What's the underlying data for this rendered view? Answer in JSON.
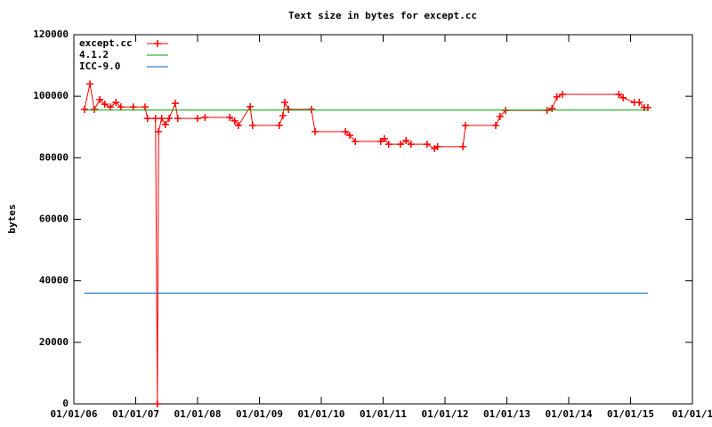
{
  "chart_data": {
    "type": "line",
    "title": "Text size in bytes for except.cc",
    "y_label": "bytes",
    "xlim": [
      2006,
      2016
    ],
    "xticks": [
      {
        "value": 2006,
        "label": "01/01/06"
      },
      {
        "value": 2007,
        "label": "01/01/07"
      },
      {
        "value": 2008,
        "label": "01/01/08"
      },
      {
        "value": 2009,
        "label": "01/01/09"
      },
      {
        "value": 2010,
        "label": "01/01/10"
      },
      {
        "value": 2011,
        "label": "01/01/11"
      },
      {
        "value": 2012,
        "label": "01/01/12"
      },
      {
        "value": 2013,
        "label": "01/01/13"
      },
      {
        "value": 2014,
        "label": "01/01/14"
      },
      {
        "value": 2015,
        "label": "01/01/15"
      },
      {
        "value": 2016,
        "label": "01/01/1"
      }
    ],
    "ylim": [
      0,
      120000
    ],
    "yticks": [
      0,
      20000,
      40000,
      60000,
      80000,
      100000,
      120000
    ],
    "legend": "top-left",
    "series": [
      {
        "name": "except.cc",
        "color": "#ff0000",
        "marker": "plus",
        "x": [
          2006.17,
          2006.26,
          2006.33,
          2006.42,
          2006.5,
          2006.59,
          2006.68,
          2006.76,
          2006.96,
          2007.15,
          2007.19,
          2007.32,
          2007.35,
          2007.37,
          2007.42,
          2007.48,
          2007.54,
          2007.64,
          2007.68,
          2008.0,
          2008.12,
          2008.52,
          2008.6,
          2008.66,
          2008.85,
          2008.89,
          2009.32,
          2009.38,
          2009.41,
          2009.47,
          2009.84,
          2009.9,
          2010.39,
          2010.46,
          2010.55,
          2010.96,
          2011.02,
          2011.09,
          2011.28,
          2011.37,
          2011.45,
          2011.71,
          2011.83,
          2011.88,
          2012.29,
          2012.33,
          2012.82,
          2012.89,
          2012.98,
          2013.65,
          2013.73,
          2013.81,
          2013.9,
          2014.81,
          2014.88,
          2015.06,
          2015.14,
          2015.22,
          2015.28
        ],
        "values": [
          95700,
          104000,
          95700,
          98900,
          97400,
          96500,
          98000,
          96500,
          96500,
          96500,
          92800,
          92800,
          0,
          88500,
          92800,
          90800,
          92800,
          97700,
          92800,
          92800,
          93100,
          93100,
          92000,
          90500,
          96600,
          90500,
          90500,
          93700,
          98000,
          95700,
          95700,
          88500,
          88500,
          87300,
          85300,
          85300,
          86200,
          84400,
          84400,
          85600,
          84400,
          84400,
          83000,
          83600,
          83600,
          90500,
          90500,
          93400,
          95400,
          95400,
          96000,
          99800,
          100600,
          100600,
          99500,
          98000,
          98000,
          96300,
          96300
        ]
      },
      {
        "name": "4.1.2",
        "color": "#00a000",
        "x": [
          2006.17,
          2015.28
        ],
        "values": [
          95500,
          95500
        ]
      },
      {
        "name": "ICC-9.0",
        "color": "#0060c0",
        "x": [
          2006.17,
          2015.28
        ],
        "values": [
          36000,
          36000
        ]
      }
    ]
  }
}
